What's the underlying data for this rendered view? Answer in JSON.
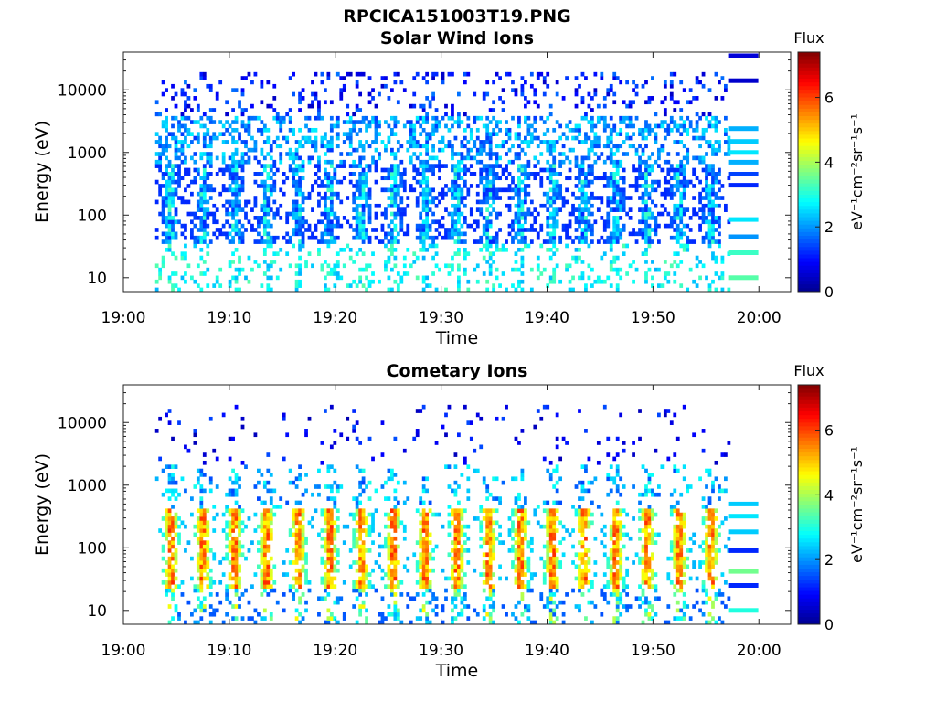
{
  "figure_title": "RPCICA151003T19.PNG",
  "colorbar": {
    "label": "Flux",
    "units": "eV⁻¹cm⁻²sr⁻¹s⁻¹",
    "range": [
      0,
      7.4
    ],
    "ticks": [
      "0",
      "2",
      "4",
      "6"
    ],
    "colormap": "jet",
    "stops": [
      "#00008f",
      "#0000ff",
      "#0080ff",
      "#00ffff",
      "#80ff80",
      "#ffff00",
      "#ff8000",
      "#ff0000",
      "#800000"
    ]
  },
  "chart_data": [
    {
      "type": "heatmap",
      "title": "Solar Wind Ions",
      "xlabel": "Time",
      "ylabel": "Energy (eV)",
      "xlim": [
        "19:00",
        "20:03"
      ],
      "ylim": [
        6,
        40000
      ],
      "yscale": "log",
      "xticks": [
        "19:00",
        "19:10",
        "19:20",
        "19:30",
        "19:40",
        "19:50",
        "20:00"
      ],
      "yticks": [
        "10",
        "100",
        "1000",
        "10000"
      ],
      "data_start": "19:03",
      "data_end": "19:57",
      "sweep_period_min": 3,
      "peak_energy_eV": [
        60,
        450
      ],
      "peak_flux": 3.2,
      "background_flux_range": [
        0.5,
        2.6
      ],
      "constant_lines": [
        {
          "energy_eV": 35000,
          "flux": 0.6
        },
        {
          "energy_eV": 14000,
          "flux": 0.5
        },
        {
          "energy_eV": 2400,
          "flux": 2.2
        },
        {
          "energy_eV": 1500,
          "flux": 2.4
        },
        {
          "energy_eV": 1000,
          "flux": 2.6
        },
        {
          "energy_eV": 700,
          "flux": 2.2
        },
        {
          "energy_eV": 450,
          "flux": 1.4
        },
        {
          "energy_eV": 300,
          "flux": 1.2
        },
        {
          "energy_eV": 85,
          "flux": 2.6
        },
        {
          "energy_eV": 45,
          "flux": 2.0
        },
        {
          "energy_eV": 25,
          "flux": 3.2
        },
        {
          "energy_eV": 10,
          "flux": 3.4
        }
      ]
    },
    {
      "type": "heatmap",
      "title": "Cometary Ions",
      "xlabel": "Time",
      "ylabel": "Energy (eV)",
      "xlim": [
        "19:00",
        "20:03"
      ],
      "ylim": [
        6,
        40000
      ],
      "yscale": "log",
      "xticks": [
        "19:00",
        "19:10",
        "19:20",
        "19:30",
        "19:40",
        "19:50",
        "20:00"
      ],
      "yticks": [
        "10",
        "100",
        "1000",
        "10000"
      ],
      "data_start": "19:03",
      "data_end": "19:57",
      "sweep_period_min": 3,
      "peak_energy_eV": [
        40,
        300
      ],
      "peak_flux": 6.2,
      "background_flux_range": [
        0.3,
        2.5
      ],
      "constant_lines": [
        {
          "energy_eV": 500,
          "flux": 2.4
        },
        {
          "energy_eV": 320,
          "flux": 2.6
        },
        {
          "energy_eV": 180,
          "flux": 2.4
        },
        {
          "energy_eV": 90,
          "flux": 1.2
        },
        {
          "energy_eV": 42,
          "flux": 3.6
        },
        {
          "energy_eV": 25,
          "flux": 1.2
        },
        {
          "energy_eV": 10,
          "flux": 3.0
        }
      ]
    }
  ]
}
